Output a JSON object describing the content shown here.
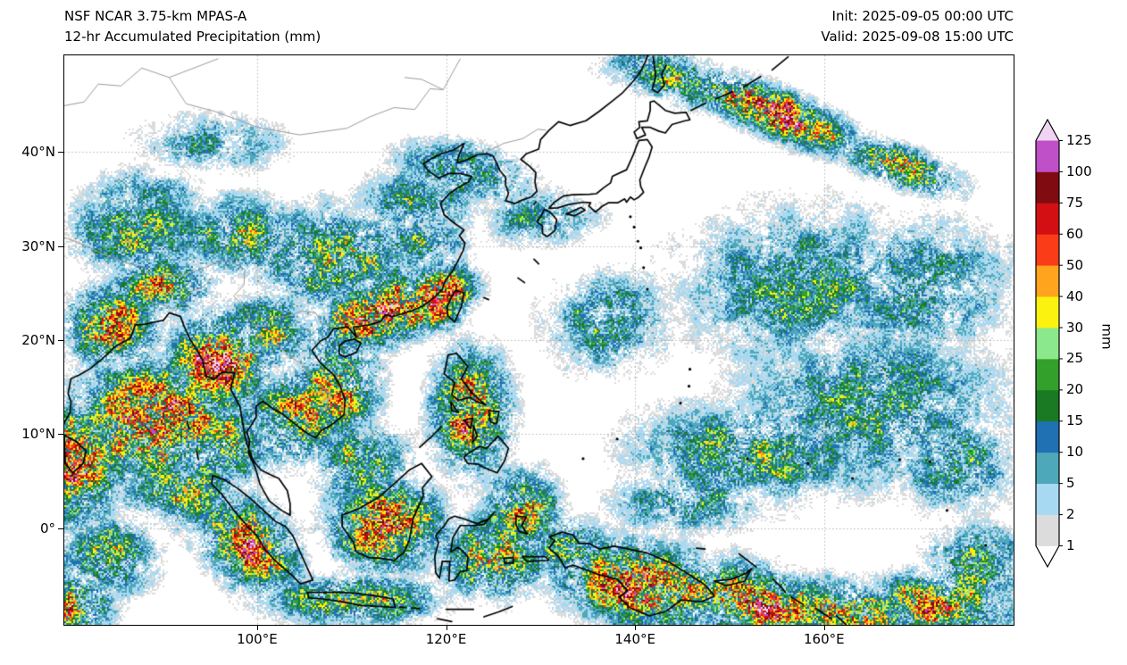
{
  "header": {
    "model_line": "NSF NCAR 3.75-km MPAS-A",
    "product_line": "12-hr Accumulated Precipitation (mm)",
    "init_line": "Init: 2025-09-05 00:00 UTC",
    "valid_line": "Valid: 2025-09-08 15:00 UTC"
  },
  "chart_data": {
    "type": "heatmap",
    "title": "12-hr Accumulated Precipitation (mm)",
    "model": "NSF NCAR 3.75-km MPAS-A",
    "init_time": "2025-09-05 00:00 UTC",
    "valid_time": "2025-09-08 15:00 UTC",
    "units": "mm",
    "projection": "lat-lon map of East Asia / Western Pacific",
    "axes": {
      "lon_range": [
        79.6,
        180.05
      ],
      "lat_range": [
        -10.25,
        50.25
      ],
      "x_ticks": [
        {
          "label": "100°E",
          "deg": 100
        },
        {
          "label": "120°E",
          "deg": 120
        },
        {
          "label": "140°E",
          "deg": 140
        },
        {
          "label": "160°E",
          "deg": 160
        }
      ],
      "y_ticks": [
        {
          "label": "40°N",
          "deg": 40
        },
        {
          "label": "30°N",
          "deg": 30
        },
        {
          "label": "20°N",
          "deg": 20
        },
        {
          "label": "10°N",
          "deg": 10
        },
        {
          "label": "0°",
          "deg": 0
        }
      ],
      "grid": "dotted gray at tick positions"
    },
    "colorbar": {
      "label": "mm",
      "levels": [
        1,
        2,
        5,
        10,
        15,
        20,
        25,
        30,
        40,
        50,
        60,
        75,
        100,
        125
      ],
      "band_colors": [
        "#dcdcdc",
        "#a8d9f2",
        "#4da8ba",
        "#2070b4",
        "#1a7a24",
        "#33a02c",
        "#8ce88c",
        "#fcf20f",
        "#ffa41c",
        "#fa3c18",
        "#d40f14",
        "#800b10",
        "#c050c8"
      ],
      "under_color": "#ffffff",
      "over_color": "#f0d5f2",
      "extend": "both"
    },
    "precip_features": [
      [
        89,
        11.5,
        7.5,
        6,
        0,
        1.0
      ],
      [
        96,
        17.5,
        5,
        5,
        0,
        0.95
      ],
      [
        84.5,
        21.5,
        4.5,
        4,
        0,
        0.85
      ],
      [
        81,
        7,
        4,
        6,
        0,
        0.9
      ],
      [
        92,
        4.5,
        6,
        4,
        0,
        0.65
      ],
      [
        84,
        -3,
        5,
        4,
        0,
        0.6
      ],
      [
        80.5,
        -8,
        4,
        3,
        0,
        0.85
      ],
      [
        99,
        -1.5,
        5.5,
        4,
        -40,
        0.85
      ],
      [
        104,
        12,
        5,
        5,
        0,
        0.7
      ],
      [
        108.5,
        15.5,
        4,
        6,
        0,
        0.75
      ],
      [
        113.5,
        23.2,
        7,
        3.2,
        18,
        1.05
      ],
      [
        118.8,
        24.8,
        4,
        3,
        30,
        1.0
      ],
      [
        108,
        29,
        10,
        5,
        0,
        0.6
      ],
      [
        98,
        31,
        7,
        4,
        0,
        0.55
      ],
      [
        87,
        31.5,
        7,
        4,
        0,
        0.55
      ],
      [
        117,
        30.5,
        5,
        3,
        0,
        0.5
      ],
      [
        117,
        34.5,
        6,
        4,
        0,
        0.45
      ],
      [
        122,
        38,
        7,
        3,
        -10,
        0.5
      ],
      [
        111,
        7,
        5,
        4,
        0,
        0.6
      ],
      [
        113.5,
        0.5,
        5.5,
        4.5,
        0,
        0.9
      ],
      [
        110,
        -7.5,
        9,
        2.5,
        0,
        0.7
      ],
      [
        122.5,
        12.5,
        4,
        6,
        0,
        0.85
      ],
      [
        125,
        -3,
        5,
        4,
        0,
        0.8
      ],
      [
        128,
        2,
        4,
        4,
        0,
        0.7
      ],
      [
        133,
        -2,
        4,
        3,
        0,
        0.6
      ],
      [
        141,
        -6,
        9,
        4,
        -12,
        0.95
      ],
      [
        152,
        -7.5,
        9,
        3.5,
        -12,
        0.9
      ],
      [
        163,
        -9,
        8,
        3,
        -10,
        0.85
      ],
      [
        172,
        -8,
        7,
        3,
        -8,
        0.8
      ],
      [
        146,
        3,
        8,
        3,
        0,
        0.5
      ],
      [
        152,
        8,
        12,
        5,
        0,
        0.55
      ],
      [
        165,
        13,
        13,
        8,
        0,
        0.5
      ],
      [
        158,
        26,
        13,
        8,
        0,
        0.45
      ],
      [
        170,
        26,
        9,
        7,
        0,
        0.45
      ],
      [
        137,
        22,
        6,
        5,
        0,
        0.5
      ],
      [
        130,
        33,
        6,
        3,
        0,
        0.42
      ],
      [
        154,
        44.5,
        9,
        2.3,
        -22,
        1.0
      ],
      [
        168,
        38.5,
        6,
        2,
        -20,
        0.85
      ],
      [
        144,
        48,
        7,
        2.5,
        -15,
        0.6
      ],
      [
        95,
        41,
        8,
        3,
        0,
        0.38
      ],
      [
        88,
        35.5,
        6,
        3,
        0,
        0.42
      ],
      [
        174,
        7,
        6,
        5,
        0,
        0.5
      ],
      [
        176,
        -4,
        5,
        4,
        0,
        0.6
      ],
      [
        90,
        26,
        5,
        3,
        0,
        0.7
      ],
      [
        101,
        21,
        5,
        4,
        0,
        0.6
      ],
      [
        97,
        9,
        4,
        4,
        0,
        0.7
      ]
    ]
  }
}
